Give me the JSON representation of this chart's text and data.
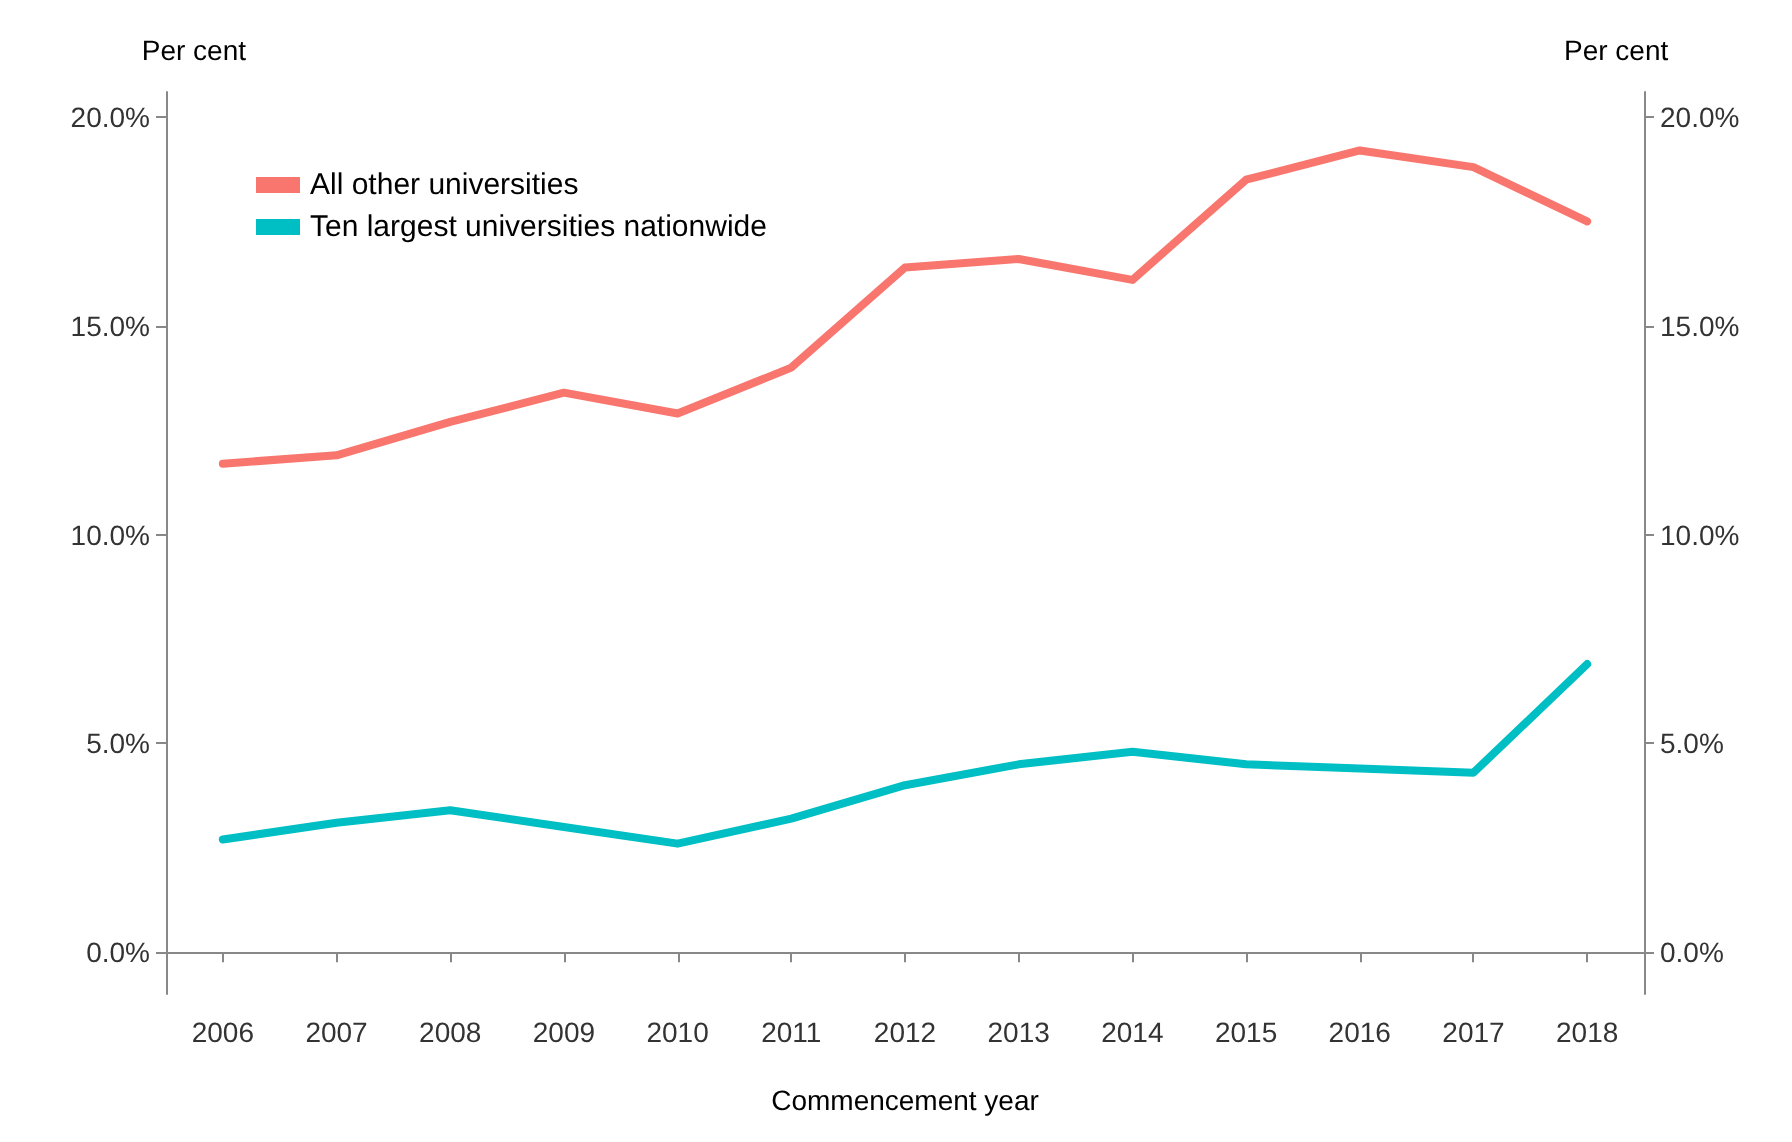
{
  "chart_data": {
    "type": "line",
    "xlabel": "Commencement year",
    "ylabel": "Per cent",
    "y2label": "Per cent",
    "categories": [
      "2006",
      "2007",
      "2008",
      "2009",
      "2010",
      "2011",
      "2012",
      "2013",
      "2014",
      "2015",
      "2016",
      "2017",
      "2018"
    ],
    "series": [
      {
        "name": "All other universities",
        "color": "#f8766d",
        "values": [
          11.7,
          11.9,
          12.7,
          13.4,
          12.9,
          14.0,
          16.4,
          16.6,
          16.1,
          18.5,
          19.2,
          18.8,
          17.5
        ]
      },
      {
        "name": "Ten largest universities nationwide",
        "color": "#00bfc4",
        "values": [
          2.7,
          3.1,
          3.4,
          3.0,
          2.6,
          3.2,
          4.0,
          4.5,
          4.8,
          4.5,
          4.4,
          4.3,
          6.9
        ]
      }
    ],
    "ylim": [
      -1,
      20.6
    ],
    "yticks": [
      {
        "value": 0,
        "label": "0.0%"
      },
      {
        "value": 5,
        "label": "5.0%"
      },
      {
        "value": 10,
        "label": "10.0%"
      },
      {
        "value": 15,
        "label": "15.0%"
      },
      {
        "value": 20,
        "label": "20.0%"
      }
    ],
    "y2lim": [
      -1,
      20.6
    ],
    "y2ticks": [
      {
        "value": 0,
        "label": "0.0%"
      },
      {
        "value": 5,
        "label": "5.0%"
      },
      {
        "value": 10,
        "label": "10.0%"
      },
      {
        "value": 15,
        "label": "15.0%"
      },
      {
        "value": 20,
        "label": "20.0%"
      }
    ],
    "legend": "top left",
    "grid": false,
    "marker": "none",
    "line_style": "solid"
  }
}
